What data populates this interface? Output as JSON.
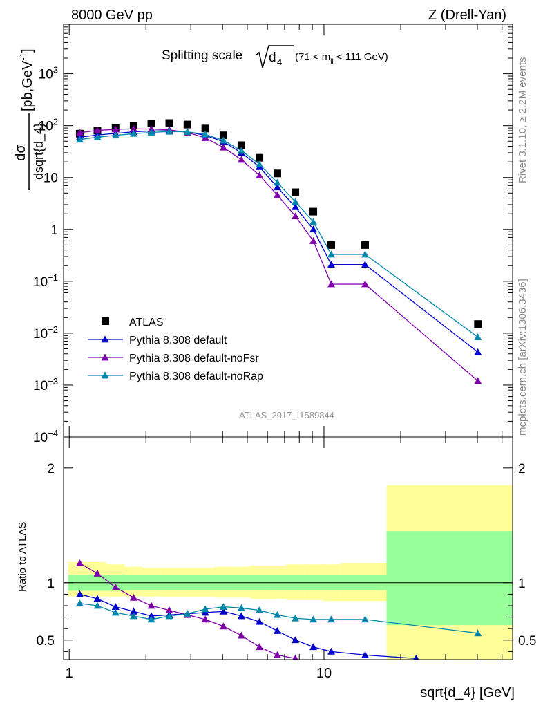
{
  "header": {
    "left": "8000 GeV pp",
    "right": "Z (Drell-Yan)"
  },
  "title": {
    "main": "Splitting scale",
    "sym": "d",
    "sym_sub": "4",
    "range_a": "(71 < m",
    "range_sub": "ll",
    "range_b": " < 111 GeV)"
  },
  "ylabel": {
    "num": "dσ",
    "den": "dsqrt{d_4}",
    "units": "[pb,GeV",
    "units_sup": "-1",
    "units_close": "]"
  },
  "ratio_ylabel": "Ratio to ATLAS",
  "xlabel": "sqrt{d_4} [GeV]",
  "right_text_top": "Rivet 3.1.10, ≥ 2.2M events",
  "right_text_bottom": "mcplots.cern.ch [arXiv:1306.3436]",
  "watermark": "ATLAS_2017_I1589844",
  "colors": {
    "data": "#000000",
    "default": "#0000cc",
    "noFsr": "#7f00aa",
    "noRap": "#0088aa",
    "band_inner": "#99ff99",
    "band_outer": "#ffff99"
  },
  "chart_data": [
    {
      "type": "line",
      "x_scale": "log",
      "y_scale": "log",
      "xlim": [
        0.95,
        55
      ],
      "ylim": [
        0.0001,
        9000
      ],
      "x_ticks": [
        "1",
        "10"
      ],
      "y_ticks": [
        "10^-4",
        "10^-3",
        "10^-2",
        "10^-1",
        "1",
        "10",
        "10^2",
        "10^3"
      ],
      "legend_position": "lower-left",
      "series": [
        {
          "name": "ATLAS",
          "marker": "square",
          "x": [
            1.1,
            1.29,
            1.52,
            1.79,
            2.1,
            2.47,
            2.91,
            3.42,
            4.03,
            4.74,
            5.58,
            6.56,
            7.72,
            9.08,
            10.68,
            14.5,
            40.2
          ],
          "y": [
            70,
            80,
            90,
            100,
            110,
            112,
            105,
            88,
            65,
            42,
            24,
            12,
            5.2,
            2.2,
            0.5,
            0.5,
            0.015
          ]
        },
        {
          "name": "Pythia 8.308 default",
          "marker": "triangle",
          "x": [
            1.1,
            1.29,
            1.52,
            1.79,
            2.1,
            2.47,
            2.91,
            3.42,
            4.03,
            4.74,
            5.58,
            6.56,
            7.72,
            9.08,
            10.68,
            14.5,
            40.2
          ],
          "y": [
            60,
            66,
            71,
            76,
            79,
            80,
            76,
            65,
            49,
            30,
            16,
            6.5,
            2.7,
            1.0,
            0.21,
            0.21,
            0.0043
          ]
        },
        {
          "name": "Pythia 8.308 default-noFsr",
          "marker": "triangle",
          "x": [
            1.1,
            1.29,
            1.52,
            1.79,
            2.1,
            2.47,
            2.91,
            3.42,
            4.03,
            4.74,
            5.58,
            6.56,
            7.72,
            9.08,
            10.68,
            14.5,
            40.2
          ],
          "y": [
            73,
            81,
            85,
            87,
            86,
            83,
            74,
            58,
            38,
            22,
            11,
            4.6,
            1.8,
            0.6,
            0.088,
            0.088,
            0.0012
          ]
        },
        {
          "name": "Pythia 8.308 default-noRap",
          "marker": "triangle",
          "x": [
            1.1,
            1.29,
            1.52,
            1.79,
            2.1,
            2.47,
            2.91,
            3.42,
            4.03,
            4.74,
            5.58,
            6.56,
            7.72,
            9.08,
            10.68,
            14.5,
            40.2
          ],
          "y": [
            54,
            60,
            65,
            70,
            74,
            77,
            76,
            68,
            52,
            33,
            18,
            8.0,
            3.4,
            1.4,
            0.33,
            0.33,
            0.0084
          ]
        }
      ]
    },
    {
      "type": "line",
      "x_scale": "log",
      "xlim": [
        0.95,
        55
      ],
      "ylim": [
        0.33,
        2.27
      ],
      "y_ticks": [
        "0.5",
        "1",
        "2"
      ],
      "bins": [
        0.99,
        1.19,
        1.4,
        1.65,
        1.94,
        2.28,
        2.68,
        3.16,
        3.72,
        4.37,
        5.14,
        6.05,
        7.12,
        8.38,
        9.86,
        11.6,
        17.6,
        55
      ],
      "band_inner": [
        [
          0.93,
          1.07
        ],
        [
          0.93,
          1.07
        ],
        [
          0.93,
          1.07
        ],
        [
          0.935,
          1.065
        ],
        [
          0.935,
          1.065
        ],
        [
          0.935,
          1.065
        ],
        [
          0.935,
          1.065
        ],
        [
          0.935,
          1.065
        ],
        [
          0.935,
          1.065
        ],
        [
          0.935,
          1.065
        ],
        [
          0.935,
          1.065
        ],
        [
          0.935,
          1.065
        ],
        [
          0.935,
          1.065
        ],
        [
          0.935,
          1.065
        ],
        [
          0.935,
          1.065
        ],
        [
          0.935,
          1.065
        ],
        [
          0.63,
          1.45
        ]
      ],
      "band_outer": [
        [
          0.88,
          1.18
        ],
        [
          0.88,
          1.18
        ],
        [
          0.88,
          1.16
        ],
        [
          0.88,
          1.14
        ],
        [
          0.88,
          1.13
        ],
        [
          0.875,
          1.13
        ],
        [
          0.875,
          1.13
        ],
        [
          0.875,
          1.13
        ],
        [
          0.87,
          1.14
        ],
        [
          0.87,
          1.14
        ],
        [
          0.86,
          1.15
        ],
        [
          0.86,
          1.15
        ],
        [
          0.85,
          1.16
        ],
        [
          0.85,
          1.16
        ],
        [
          0.84,
          1.16
        ],
        [
          0.84,
          1.17
        ],
        [
          0.33,
          1.85
        ]
      ],
      "series": [
        {
          "name": "Pythia 8.308 default",
          "x": [
            1.1,
            1.29,
            1.52,
            1.79,
            2.1,
            2.47,
            2.91,
            3.42,
            4.03,
            4.74,
            5.58,
            6.56,
            7.72,
            9.08,
            10.68,
            14.5,
            23.0
          ],
          "y": [
            0.9,
            0.86,
            0.79,
            0.75,
            0.71,
            0.72,
            0.73,
            0.74,
            0.75,
            0.71,
            0.66,
            0.58,
            0.5,
            0.44,
            0.4,
            0.37,
            0.34
          ]
        },
        {
          "name": "Pythia 8.308 default-noFsr",
          "x": [
            1.1,
            1.29,
            1.52,
            1.79,
            2.1,
            2.47,
            2.91,
            3.42,
            4.03,
            4.74,
            5.58,
            6.56,
            7.72
          ],
          "y": [
            1.17,
            1.08,
            0.96,
            0.87,
            0.8,
            0.76,
            0.72,
            0.68,
            0.62,
            0.54,
            0.44,
            0.37,
            0.34
          ]
        },
        {
          "name": "Pythia 8.308 default-noRap",
          "x": [
            1.1,
            1.29,
            1.52,
            1.79,
            2.1,
            2.47,
            2.91,
            3.42,
            4.03,
            4.74,
            5.58,
            6.56,
            7.72,
            9.08,
            10.68,
            14.5,
            40.2
          ],
          "y": [
            0.82,
            0.8,
            0.74,
            0.71,
            0.68,
            0.71,
            0.73,
            0.77,
            0.79,
            0.78,
            0.76,
            0.72,
            0.69,
            0.68,
            0.68,
            0.68,
            0.56
          ]
        }
      ]
    }
  ]
}
